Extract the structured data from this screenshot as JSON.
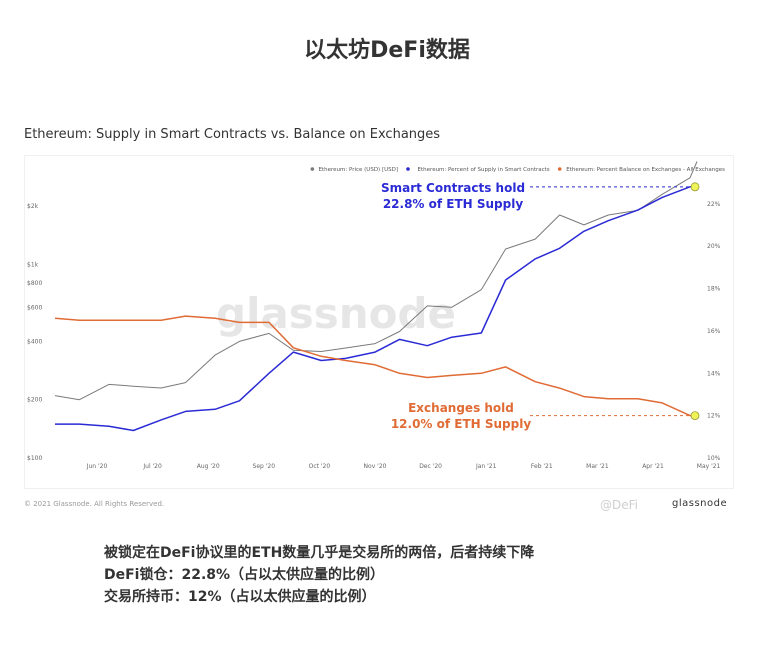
{
  "page": {
    "title": "以太坊DeFi数据",
    "chart_heading": "Ethereum: Supply in Smart Contracts vs. Balance on Exchanges",
    "copyright": "© 2021 Glassnode. All Rights Reserved.",
    "brand": "glassnode",
    "watermark": "glassnode",
    "weibo_watermark": "@DeFi",
    "summary": [
      "被锁定在DeFi协议里的ETH数量几乎是交易所的两倍，后者持续下降",
      "DeFi锁仓：22.8%（占以太供应量的比例）",
      "交易所持币：12%（占以太供应量的比例）"
    ]
  },
  "chart_data": {
    "type": "line",
    "legend": [
      {
        "name": "Ethereum: Price (USD) [USD]",
        "color": "#7a7a7a"
      },
      {
        "name": "Ethereum: Percent of Supply in Smart Contracts",
        "color": "#2b2bd6"
      },
      {
        "name": "Ethereum: Percent Balance on Exchanges - All Exchanges",
        "color": "#e06b35"
      }
    ],
    "legend_position": "top-right",
    "grid": false,
    "x_ticks": [
      "Jun '20",
      "Jul '20",
      "Aug '20",
      "Sep '20",
      "Oct '20",
      "Nov '20",
      "Dec '20",
      "Jan '21",
      "Feb '21",
      "Mar '21",
      "Apr '21",
      "May '21"
    ],
    "y_left": {
      "scale": "log",
      "ticks": [
        "$100",
        "$200",
        "$400",
        "$600",
        "$800",
        "$1k",
        "$2k"
      ],
      "tick_values": [
        100,
        200,
        400,
        600,
        800,
        1000,
        2000
      ],
      "range": [
        100,
        3000
      ]
    },
    "y_right": {
      "ticks": [
        "10%",
        "12%",
        "14%",
        "16%",
        "18%",
        "20%",
        "22%"
      ],
      "range": [
        10,
        23.5
      ]
    },
    "x": [
      "2020-05-01",
      "2020-05-15",
      "2020-06-01",
      "2020-06-15",
      "2020-07-01",
      "2020-07-15",
      "2020-08-01",
      "2020-08-15",
      "2020-09-01",
      "2020-09-15",
      "2020-10-01",
      "2020-10-15",
      "2020-11-01",
      "2020-11-15",
      "2020-12-01",
      "2020-12-15",
      "2021-01-01",
      "2021-01-15",
      "2021-02-01",
      "2021-02-15",
      "2021-03-01",
      "2021-03-15",
      "2021-04-01",
      "2021-04-15",
      "2021-05-01",
      "2021-05-05"
    ],
    "series": [
      {
        "name": "Ethereum: Price (USD) [USD]",
        "axis": "left",
        "color": "#7a7a7a",
        "values": [
          210,
          200,
          240,
          235,
          230,
          245,
          340,
          400,
          440,
          360,
          355,
          370,
          390,
          450,
          610,
          600,
          740,
          1200,
          1350,
          1800,
          1600,
          1800,
          1900,
          2300,
          2800,
          3400
        ]
      },
      {
        "name": "Ethereum: Percent of Supply in Smart Contracts",
        "axis": "right",
        "color": "#2b2bd6",
        "values": [
          11.6,
          11.6,
          11.5,
          11.3,
          11.8,
          12.2,
          12.3,
          12.7,
          14.0,
          15.0,
          14.6,
          14.7,
          15.0,
          15.6,
          15.3,
          15.7,
          15.9,
          18.4,
          19.4,
          19.9,
          20.7,
          21.2,
          21.7,
          22.3,
          22.8,
          22.8
        ]
      },
      {
        "name": "Ethereum: Percent Balance on Exchanges - All Exchanges",
        "axis": "right",
        "color": "#e06b35",
        "values": [
          16.6,
          16.5,
          16.5,
          16.5,
          16.5,
          16.7,
          16.6,
          16.4,
          16.4,
          15.2,
          14.8,
          14.6,
          14.4,
          14.0,
          13.8,
          13.9,
          14.0,
          14.3,
          13.6,
          13.3,
          12.9,
          12.8,
          12.8,
          12.6,
          12.0,
          12.0
        ]
      }
    ],
    "annotations": [
      {
        "text": "Smart Contracts hold\n22.8% of ETH Supply",
        "color": "#2b2bd6"
      },
      {
        "text": "Exchanges hold\n12.0% of ETH Supply",
        "color": "#e06b35"
      }
    ]
  }
}
